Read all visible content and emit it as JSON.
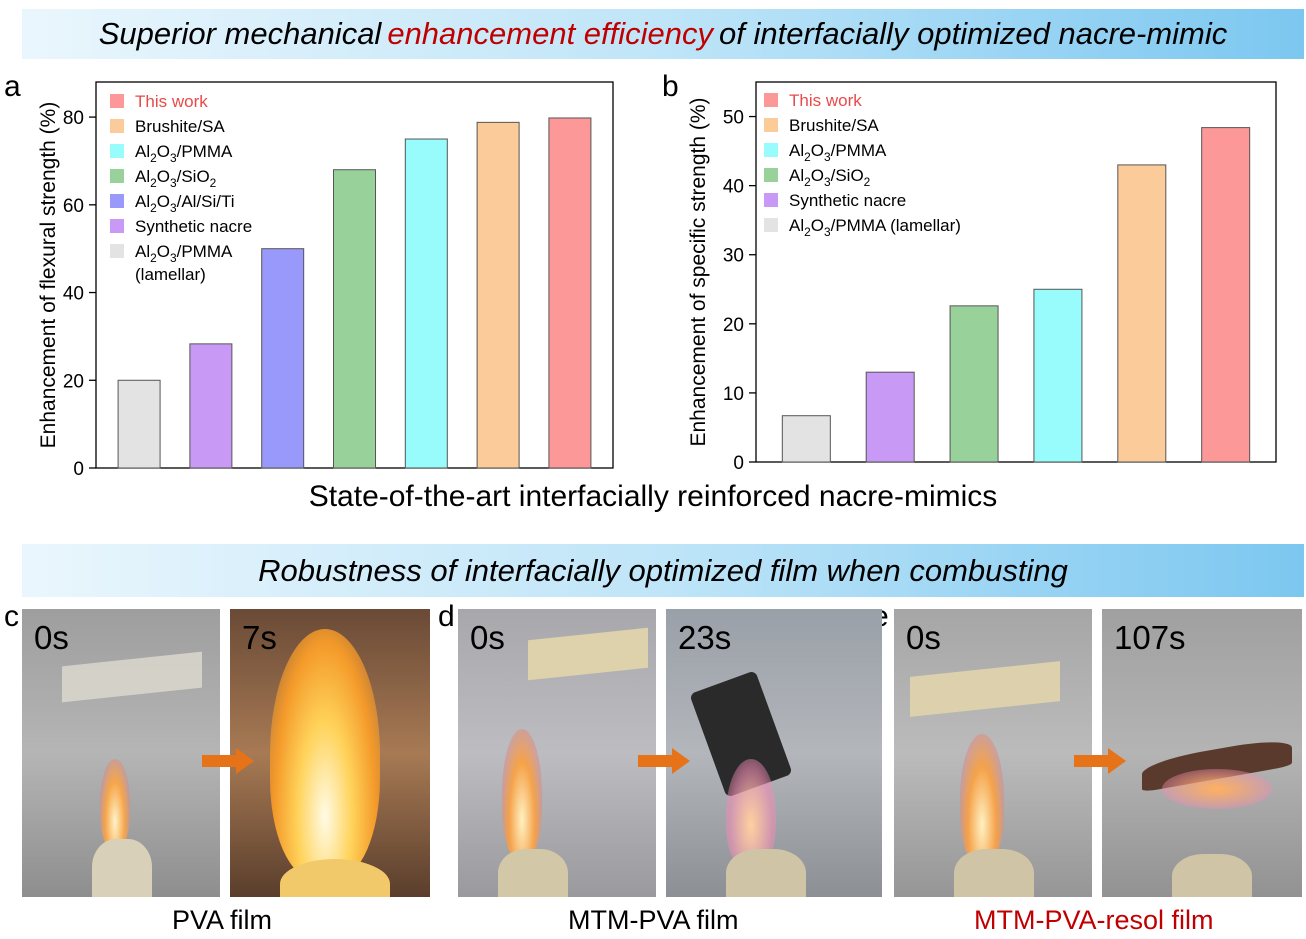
{
  "banner_top": {
    "prefix": "Superior mechanical ",
    "highlight": "enhancement efficiency",
    "suffix": " of interfacially optimized nacre-mimic"
  },
  "banner_bottom": "Robustness of interfacially optimized film when combusting",
  "shared_xlabel": "State-of-the-art interfacially reinforced nacre-mimics",
  "panel_labels": {
    "a": "a",
    "b": "b",
    "c": "c",
    "d": "d",
    "e": "e"
  },
  "chart_data": [
    {
      "type": "bar",
      "ylabel": "Enhancement of flexural strength (%)",
      "ylim": [
        0,
        88
      ],
      "yticks": [
        0,
        20,
        40,
        60,
        80
      ],
      "legend_position": "top-left",
      "series": [
        {
          "name": "Al2O3/PMMA (lamellar)",
          "value": 20,
          "color": "#e3e3e3"
        },
        {
          "name": "Synthetic nacre",
          "value": 28.3,
          "color": "#c899f5"
        },
        {
          "name": "Al2O3/Al/Si/Ti",
          "value": 50,
          "color": "#9999fb"
        },
        {
          "name": "Al2O3/SiO2",
          "value": 68,
          "color": "#98d29a"
        },
        {
          "name": "Al2O3/PMMA",
          "value": 75,
          "color": "#97fcfb"
        },
        {
          "name": "Brushite/SA",
          "value": 78.8,
          "color": "#fbcb99"
        },
        {
          "name": "This work",
          "value": 79.8,
          "color": "#fc9898"
        }
      ],
      "legend": [
        {
          "sub": [
            "This work"
          ],
          "color": "#fc9898",
          "text_color": "#e84a4a"
        },
        {
          "sub": [
            "Brushite/SA"
          ],
          "color": "#fbcb99"
        },
        {
          "sub": [
            "Al",
            "2",
            "O",
            "3",
            "/PMMA"
          ],
          "color": "#97fcfb"
        },
        {
          "sub": [
            "Al",
            "2",
            "O",
            "3",
            "/SiO",
            "2"
          ],
          "color": "#98d29a"
        },
        {
          "sub": [
            "Al",
            "2",
            "O",
            "3",
            "/Al/Si/Ti"
          ],
          "color": "#9999fb"
        },
        {
          "sub": [
            "Synthetic nacre"
          ],
          "color": "#c899f5"
        },
        {
          "sub": [
            "Al",
            "2",
            "O",
            "3",
            "/PMMA"
          ],
          "sub2": "(lamellar)",
          "color": "#e3e3e3"
        }
      ]
    },
    {
      "type": "bar",
      "ylabel": "Enhancement of specific strength (%)",
      "ylim": [
        0,
        55
      ],
      "yticks": [
        0,
        10,
        20,
        30,
        40,
        50
      ],
      "legend_position": "top-left",
      "series": [
        {
          "name": "Al2O3/PMMA (lamellar)",
          "value": 6.7,
          "color": "#e3e3e3"
        },
        {
          "name": "Synthetic nacre",
          "value": 13,
          "color": "#c899f5"
        },
        {
          "name": "Al2O3/SiO2",
          "value": 22.6,
          "color": "#98d29a"
        },
        {
          "name": "Al2O3/PMMA",
          "value": 25,
          "color": "#97fcfb"
        },
        {
          "name": "Brushite/SA",
          "value": 43,
          "color": "#fbcb99"
        },
        {
          "name": "This work",
          "value": 48.4,
          "color": "#fc9898"
        }
      ],
      "legend": [
        {
          "sub": [
            "This work"
          ],
          "color": "#fc9898",
          "text_color": "#e84a4a"
        },
        {
          "sub": [
            "Brushite/SA"
          ],
          "color": "#fbcb99"
        },
        {
          "sub": [
            "Al",
            "2",
            "O",
            "3",
            "/PMMA"
          ],
          "color": "#97fcfb"
        },
        {
          "sub": [
            "Al",
            "2",
            "O",
            "3",
            "/SiO",
            "2"
          ],
          "color": "#98d29a"
        },
        {
          "sub": [
            "Synthetic nacre"
          ],
          "color": "#c899f5"
        },
        {
          "sub": [
            "Al",
            "2",
            "O",
            "3",
            "/PMMA (lamellar)"
          ],
          "color": "#e3e3e3"
        }
      ]
    }
  ],
  "photos": [
    {
      "time": "0s"
    },
    {
      "time": "7s"
    },
    {
      "time": "0s"
    },
    {
      "time": "23s"
    },
    {
      "time": "0s"
    },
    {
      "time": "107s"
    }
  ],
  "captions": {
    "c": "PVA film",
    "d": "MTM-PVA film",
    "e": "MTM-PVA-resol film"
  },
  "colors": {
    "highlight": "#c00000",
    "arrow": "#e67317"
  }
}
